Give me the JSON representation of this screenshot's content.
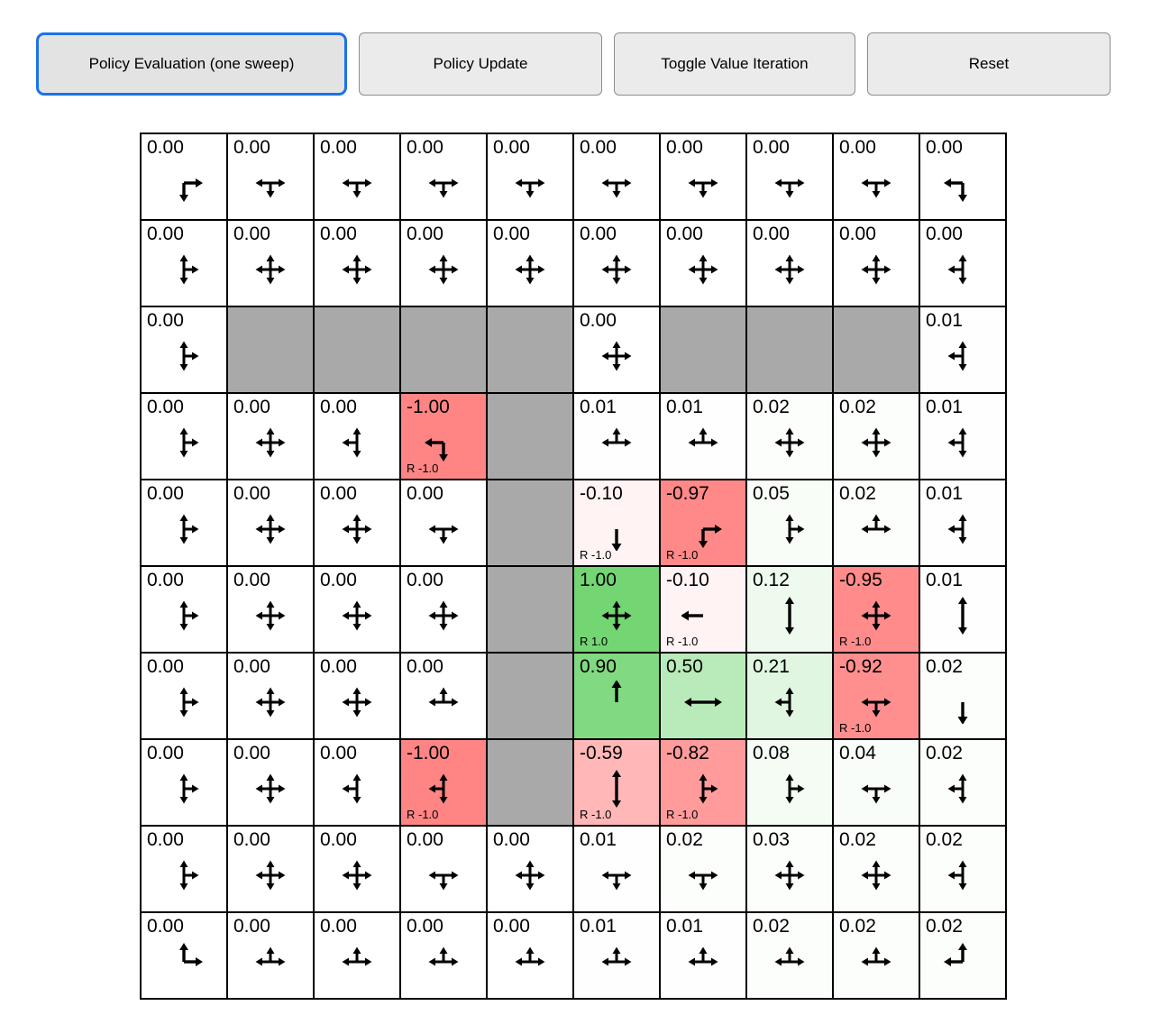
{
  "toolbar": {
    "buttons": [
      {
        "label": "Policy Evaluation (one sweep)",
        "active": true
      },
      {
        "label": "Policy Update",
        "active": false
      },
      {
        "label": "Toggle Value Iteration",
        "active": false
      },
      {
        "label": "Reset",
        "active": false
      }
    ]
  },
  "colors": {
    "wall": "#a9a9a9",
    "positive": "#00b400",
    "negative": "#ff0000",
    "grid_border": "#000000",
    "active_button_border": "#1a73e8"
  },
  "grid": {
    "rows": 10,
    "cols": 10,
    "cells": [
      {
        "value": "0.00",
        "arrows": [
          "right",
          "down"
        ]
      },
      {
        "value": "0.00",
        "arrows": [
          "down",
          "left",
          "right"
        ]
      },
      {
        "value": "0.00",
        "arrows": [
          "down",
          "left",
          "right"
        ]
      },
      {
        "value": "0.00",
        "arrows": [
          "down",
          "left",
          "right"
        ]
      },
      {
        "value": "0.00",
        "arrows": [
          "down",
          "left",
          "right"
        ]
      },
      {
        "value": "0.00",
        "arrows": [
          "down",
          "left",
          "right"
        ]
      },
      {
        "value": "0.00",
        "arrows": [
          "down",
          "left",
          "right"
        ]
      },
      {
        "value": "0.00",
        "arrows": [
          "down",
          "left",
          "right"
        ]
      },
      {
        "value": "0.00",
        "arrows": [
          "down",
          "left",
          "right"
        ]
      },
      {
        "value": "0.00",
        "arrows": [
          "left",
          "down"
        ]
      },
      {
        "value": "0.00",
        "arrows": [
          "up",
          "right",
          "down"
        ]
      },
      {
        "value": "0.00",
        "arrows": [
          "up",
          "down",
          "left",
          "right"
        ]
      },
      {
        "value": "0.00",
        "arrows": [
          "up",
          "down",
          "left",
          "right"
        ]
      },
      {
        "value": "0.00",
        "arrows": [
          "up",
          "down",
          "left",
          "right"
        ]
      },
      {
        "value": "0.00",
        "arrows": [
          "up",
          "down",
          "left",
          "right"
        ]
      },
      {
        "value": "0.00",
        "arrows": [
          "up",
          "down",
          "left",
          "right"
        ]
      },
      {
        "value": "0.00",
        "arrows": [
          "up",
          "down",
          "left",
          "right"
        ]
      },
      {
        "value": "0.00",
        "arrows": [
          "up",
          "down",
          "left",
          "right"
        ]
      },
      {
        "value": "0.00",
        "arrows": [
          "up",
          "down",
          "left",
          "right"
        ]
      },
      {
        "value": "0.00",
        "arrows": [
          "up",
          "down",
          "left"
        ]
      },
      {
        "value": "0.00",
        "arrows": [
          "up",
          "right",
          "down"
        ]
      },
      {
        "wall": true
      },
      {
        "wall": true
      },
      {
        "wall": true
      },
      {
        "wall": true
      },
      {
        "value": "0.00",
        "arrows": [
          "up",
          "down",
          "left",
          "right"
        ]
      },
      {
        "wall": true
      },
      {
        "wall": true
      },
      {
        "wall": true
      },
      {
        "value": "0.01",
        "arrows": [
          "up",
          "down",
          "left"
        ]
      },
      {
        "value": "0.00",
        "arrows": [
          "up",
          "right",
          "down"
        ]
      },
      {
        "value": "0.00",
        "arrows": [
          "up",
          "down",
          "left",
          "right"
        ]
      },
      {
        "value": "0.00",
        "arrows": [
          "up",
          "down",
          "left"
        ]
      },
      {
        "value": "-1.00",
        "arrows": [
          "left",
          "down"
        ],
        "reward": "R -1.0"
      },
      {
        "wall": true
      },
      {
        "value": "0.01",
        "arrows": [
          "left",
          "up",
          "right"
        ]
      },
      {
        "value": "0.01",
        "arrows": [
          "left",
          "up",
          "right"
        ]
      },
      {
        "value": "0.02",
        "arrows": [
          "up",
          "down",
          "left",
          "right"
        ]
      },
      {
        "value": "0.02",
        "arrows": [
          "up",
          "down",
          "left",
          "right"
        ]
      },
      {
        "value": "0.01",
        "arrows": [
          "up",
          "down",
          "left"
        ]
      },
      {
        "value": "0.00",
        "arrows": [
          "up",
          "right",
          "down"
        ]
      },
      {
        "value": "0.00",
        "arrows": [
          "up",
          "down",
          "left",
          "right"
        ]
      },
      {
        "value": "0.00",
        "arrows": [
          "up",
          "down",
          "left",
          "right"
        ]
      },
      {
        "value": "0.00",
        "arrows": [
          "down",
          "left",
          "right"
        ]
      },
      {
        "wall": true
      },
      {
        "value": "-0.10",
        "arrows": [
          "down"
        ],
        "reward": "R -1.0"
      },
      {
        "value": "-0.97",
        "arrows": [
          "right",
          "down"
        ],
        "reward": "R -1.0"
      },
      {
        "value": "0.05",
        "arrows": [
          "up",
          "right",
          "down"
        ]
      },
      {
        "value": "0.02",
        "arrows": [
          "left",
          "up",
          "right"
        ]
      },
      {
        "value": "0.01",
        "arrows": [
          "up",
          "down",
          "left"
        ]
      },
      {
        "value": "0.00",
        "arrows": [
          "up",
          "right",
          "down"
        ]
      },
      {
        "value": "0.00",
        "arrows": [
          "up",
          "down",
          "left",
          "right"
        ]
      },
      {
        "value": "0.00",
        "arrows": [
          "up",
          "down",
          "left",
          "right"
        ]
      },
      {
        "value": "0.00",
        "arrows": [
          "up",
          "down",
          "left",
          "right"
        ]
      },
      {
        "wall": true
      },
      {
        "value": "1.00",
        "arrows": [
          "up",
          "down",
          "left",
          "right"
        ],
        "reward": "R 1.0"
      },
      {
        "value": "-0.10",
        "arrows": [
          "left"
        ],
        "reward": "R -1.0"
      },
      {
        "value": "0.12",
        "arrows": [
          "up",
          "down"
        ]
      },
      {
        "value": "-0.95",
        "arrows": [
          "up",
          "down",
          "left",
          "right"
        ],
        "reward": "R -1.0"
      },
      {
        "value": "0.01",
        "arrows": [
          "up",
          "down"
        ]
      },
      {
        "value": "0.00",
        "arrows": [
          "up",
          "right",
          "down"
        ]
      },
      {
        "value": "0.00",
        "arrows": [
          "up",
          "down",
          "left",
          "right"
        ]
      },
      {
        "value": "0.00",
        "arrows": [
          "up",
          "down",
          "left",
          "right"
        ]
      },
      {
        "value": "0.00",
        "arrows": [
          "left",
          "up",
          "right"
        ]
      },
      {
        "wall": true
      },
      {
        "value": "0.90",
        "arrows": [
          "up"
        ]
      },
      {
        "value": "0.50",
        "arrows": [
          "left",
          "right"
        ]
      },
      {
        "value": "0.21",
        "arrows": [
          "up",
          "down",
          "left"
        ]
      },
      {
        "value": "-0.92",
        "arrows": [
          "down",
          "left",
          "right"
        ],
        "reward": "R -1.0"
      },
      {
        "value": "0.02",
        "arrows": [
          "down"
        ]
      },
      {
        "value": "0.00",
        "arrows": [
          "up",
          "right",
          "down"
        ]
      },
      {
        "value": "0.00",
        "arrows": [
          "up",
          "down",
          "left",
          "right"
        ]
      },
      {
        "value": "0.00",
        "arrows": [
          "up",
          "down",
          "left"
        ]
      },
      {
        "value": "-1.00",
        "arrows": [
          "up",
          "down",
          "left"
        ],
        "reward": "R -1.0"
      },
      {
        "wall": true
      },
      {
        "value": "-0.59",
        "arrows": [
          "up",
          "down"
        ],
        "reward": "R -1.0"
      },
      {
        "value": "-0.82",
        "arrows": [
          "up",
          "right",
          "down"
        ],
        "reward": "R -1.0"
      },
      {
        "value": "0.08",
        "arrows": [
          "up",
          "right",
          "down"
        ]
      },
      {
        "value": "0.04",
        "arrows": [
          "down",
          "left",
          "right"
        ]
      },
      {
        "value": "0.02",
        "arrows": [
          "up",
          "down",
          "left"
        ]
      },
      {
        "value": "0.00",
        "arrows": [
          "up",
          "right",
          "down"
        ]
      },
      {
        "value": "0.00",
        "arrows": [
          "up",
          "down",
          "left",
          "right"
        ]
      },
      {
        "value": "0.00",
        "arrows": [
          "up",
          "down",
          "left",
          "right"
        ]
      },
      {
        "value": "0.00",
        "arrows": [
          "down",
          "left",
          "right"
        ]
      },
      {
        "value": "0.00",
        "arrows": [
          "up",
          "down",
          "left",
          "right"
        ]
      },
      {
        "value": "0.01",
        "arrows": [
          "down",
          "left",
          "right"
        ]
      },
      {
        "value": "0.02",
        "arrows": [
          "down",
          "left",
          "right"
        ]
      },
      {
        "value": "0.03",
        "arrows": [
          "up",
          "down",
          "left",
          "right"
        ]
      },
      {
        "value": "0.02",
        "arrows": [
          "up",
          "down",
          "left",
          "right"
        ]
      },
      {
        "value": "0.02",
        "arrows": [
          "up",
          "down",
          "left"
        ]
      },
      {
        "value": "0.00",
        "arrows": [
          "up",
          "right"
        ]
      },
      {
        "value": "0.00",
        "arrows": [
          "left",
          "up",
          "right"
        ]
      },
      {
        "value": "0.00",
        "arrows": [
          "left",
          "up",
          "right"
        ]
      },
      {
        "value": "0.00",
        "arrows": [
          "left",
          "up",
          "right"
        ]
      },
      {
        "value": "0.00",
        "arrows": [
          "left",
          "up",
          "right"
        ]
      },
      {
        "value": "0.01",
        "arrows": [
          "left",
          "up",
          "right"
        ]
      },
      {
        "value": "0.01",
        "arrows": [
          "left",
          "up",
          "right"
        ]
      },
      {
        "value": "0.02",
        "arrows": [
          "left",
          "up",
          "right"
        ]
      },
      {
        "value": "0.02",
        "arrows": [
          "left",
          "up",
          "right"
        ]
      },
      {
        "value": "0.02",
        "arrows": [
          "left",
          "up"
        ]
      }
    ]
  }
}
